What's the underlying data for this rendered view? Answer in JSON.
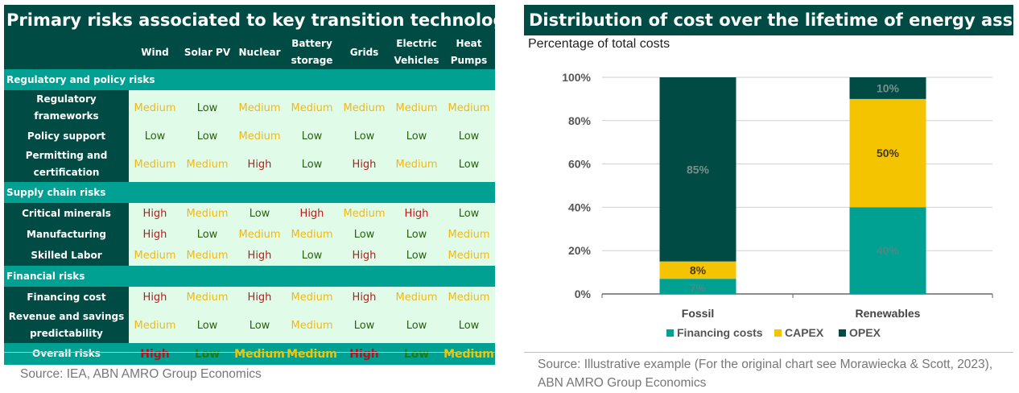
{
  "left_panel": {
    "title": "Primary risks associated to key transition technologies",
    "columns": [
      "Wind",
      "Solar PV",
      "Nuclear",
      "Battery storage",
      "Grids",
      "Electric Vehicles",
      "Heat Pumps"
    ],
    "sections": [
      {
        "title": "Regulatory and policy risks",
        "rows": [
          {
            "label": "Regulatory frameworks",
            "values": [
              "Medium",
              "Low",
              "Medium",
              "Medium",
              "Medium",
              "Medium",
              "Medium"
            ]
          },
          {
            "label": "Policy support",
            "values": [
              "Low",
              "Low",
              "Medium",
              "Low",
              "Low",
              "Low",
              "Low"
            ]
          },
          {
            "label": "Permitting and certification",
            "values": [
              "Medium",
              "Medium",
              "High",
              "Low",
              "High",
              "Medium",
              "Low"
            ]
          }
        ]
      },
      {
        "title": "Supply chain risks",
        "rows": [
          {
            "label": "Critical minerals",
            "values": [
              "High",
              "Medium",
              "Low",
              "High",
              "Medium",
              "High",
              "Low"
            ]
          },
          {
            "label": "Manufacturing",
            "values": [
              "High",
              "Low",
              "Medium",
              "Medium",
              "Low",
              "Low",
              "Medium"
            ]
          },
          {
            "label": "Skilled Labor",
            "values": [
              "Medium",
              "Medium",
              "High",
              "Low",
              "High",
              "Low",
              "Medium"
            ]
          }
        ]
      },
      {
        "title": "Financial risks",
        "rows": [
          {
            "label": "Financing cost",
            "values": [
              "High",
              "Medium",
              "High",
              "Medium",
              "High",
              "Medium",
              "Medium"
            ]
          },
          {
            "label": "Revenue and savings predictability",
            "values": [
              "Medium",
              "Low",
              "Low",
              "Medium",
              "Low",
              "Low",
              "Low"
            ]
          }
        ]
      }
    ],
    "overall": {
      "label": "Overall risks",
      "values": [
        "High",
        "Low",
        "Medium",
        "Medium",
        "High",
        "Low",
        "Medium"
      ]
    },
    "source": "Source: IEA, ABN AMRO Group Economics"
  },
  "right_panel": {
    "title": "Distribution of cost over the lifetime of energy assets",
    "subtitle": "Percentage of total costs",
    "source": "Source: Illustrative example (For the original chart see Morawiecka & Scott, 2023), ABN AMRO Group Economics"
  },
  "chart_data": {
    "type": "bar",
    "stacked": true,
    "categories": [
      "Fossil",
      "Renewables"
    ],
    "series": [
      {
        "name": "Financing costs",
        "values": [
          7,
          40
        ],
        "labels": [
          "7%",
          "40%"
        ],
        "color": "#00a093"
      },
      {
        "name": "CAPEX",
        "values": [
          8,
          50
        ],
        "labels": [
          "8%",
          "50%"
        ],
        "color": "#f4c400"
      },
      {
        "name": "OPEX",
        "values": [
          85,
          10
        ],
        "labels": [
          "85%",
          "10%"
        ],
        "color": "#004c45"
      }
    ],
    "ylim": [
      0,
      100
    ],
    "yticks": [
      "0%",
      "20%",
      "40%",
      "60%",
      "80%",
      "100%"
    ],
    "grid": true,
    "legend": "bottom"
  }
}
